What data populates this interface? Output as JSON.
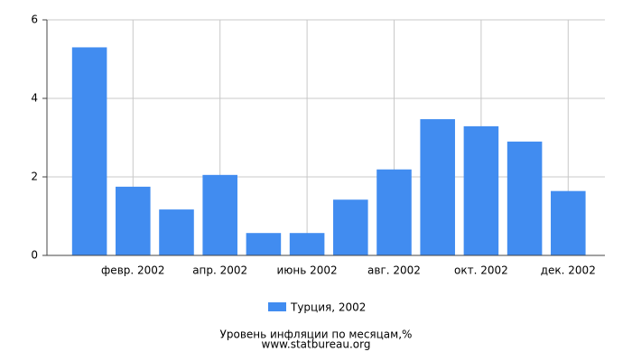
{
  "chart_data": {
    "type": "bar",
    "title": "Уровень инфляции по месяцам,%",
    "subtitle": "www.statbureau.org",
    "categories": [
      null,
      "февр. 2002",
      null,
      "апр. 2002",
      null,
      "июнь 2002",
      null,
      "авг. 2002",
      null,
      "окт. 2002",
      null,
      "дек. 2002"
    ],
    "series": [
      {
        "name": "Турция, 2002",
        "color": "#418cf0",
        "values": [
          5.3,
          1.75,
          1.17,
          2.05,
          0.57,
          0.57,
          1.42,
          2.19,
          3.47,
          3.29,
          2.9,
          1.64
        ]
      }
    ],
    "ylim": [
      0,
      6
    ],
    "yticks": [
      0,
      2,
      4,
      6
    ],
    "grid": true
  }
}
